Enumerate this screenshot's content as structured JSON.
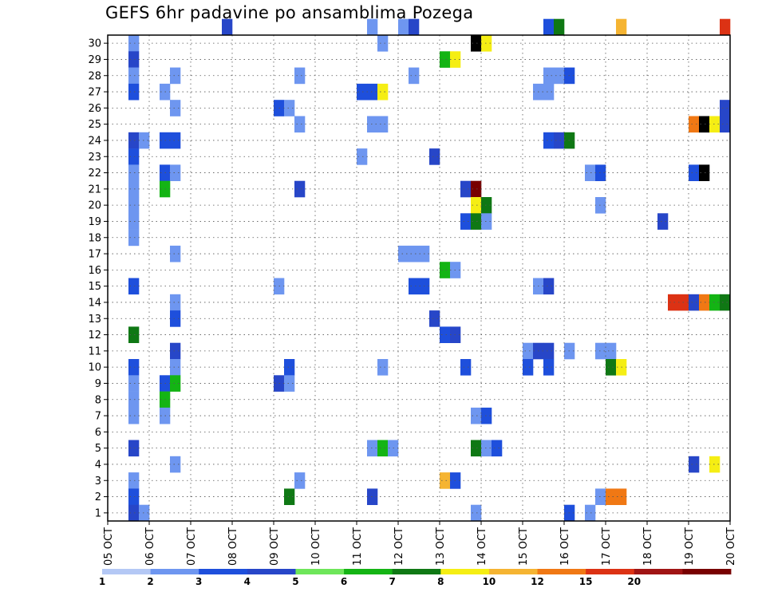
{
  "chart_data": {
    "type": "heatmap",
    "title": "GEFS 6hr padavine po ansamblima Pozega",
    "xlabel": "",
    "ylabel": "",
    "x_tick_labels": [
      "05 OCT",
      "06 OCT",
      "07 OCT",
      "08 OCT",
      "09 OCT",
      "10 OCT",
      "11 OCT",
      "12 OCT",
      "13 OCT",
      "14 OCT",
      "15 OCT",
      "16 OCT",
      "17 OCT",
      "18 OCT",
      "19 OCT",
      "20 OCT"
    ],
    "y_tick_labels": [
      "1",
      "2",
      "3",
      "4",
      "5",
      "6",
      "7",
      "8",
      "9",
      "10",
      "11",
      "12",
      "13",
      "14",
      "15",
      "16",
      "17",
      "18",
      "19",
      "20",
      "21",
      "22",
      "23",
      "24",
      "25",
      "26",
      "27",
      "28",
      "29",
      "30"
    ],
    "xlim": [
      0,
      60
    ],
    "ylim": [
      0,
      30
    ],
    "x_unit": "6-hour steps from 05 OCT",
    "grid": true,
    "legend": {
      "placement": "bottom",
      "labels": [
        "1",
        "2",
        "3",
        "4",
        "5",
        "6",
        "7",
        "8",
        "10",
        "12",
        "15",
        "20"
      ],
      "colors": [
        "#b4c8f5",
        "#6e96f0",
        "#1e4fdc",
        "#2746c8",
        "#6ee65a",
        "#14b414",
        "#0f7814",
        "#f5ee14",
        "#f5b432",
        "#f07814",
        "#dc3214",
        "#a01414",
        "#780000"
      ]
    },
    "cells": [
      [
        11,
        30,
        3
      ],
      [
        25,
        30,
        1
      ],
      [
        28,
        30,
        1
      ],
      [
        29,
        30,
        3
      ],
      [
        42,
        30,
        2
      ],
      [
        43,
        30,
        6
      ],
      [
        49,
        30,
        8
      ],
      [
        59,
        30,
        10
      ],
      [
        2,
        29,
        1
      ],
      [
        26,
        29,
        1
      ],
      [
        35,
        29,
        13
      ],
      [
        36,
        29,
        7
      ],
      [
        2,
        28,
        3
      ],
      [
        32,
        28,
        5
      ],
      [
        33,
        28,
        7
      ],
      [
        2,
        27,
        1
      ],
      [
        6,
        27,
        1
      ],
      [
        18,
        27,
        1
      ],
      [
        29,
        27,
        1
      ],
      [
        42,
        27,
        1
      ],
      [
        43,
        27,
        1
      ],
      [
        44,
        27,
        2
      ],
      [
        2,
        26,
        2
      ],
      [
        5,
        26,
        1
      ],
      [
        24,
        26,
        2
      ],
      [
        25,
        26,
        2
      ],
      [
        26,
        26,
        7
      ],
      [
        41,
        26,
        1
      ],
      [
        42,
        26,
        1
      ],
      [
        6,
        25,
        1
      ],
      [
        16,
        25,
        2
      ],
      [
        17,
        25,
        1
      ],
      [
        59,
        25,
        3
      ],
      [
        18,
        24,
        1
      ],
      [
        25,
        24,
        1
      ],
      [
        26,
        24,
        1
      ],
      [
        56,
        24,
        9
      ],
      [
        57,
        24,
        14
      ],
      [
        58,
        24,
        7
      ],
      [
        59,
        24,
        3
      ],
      [
        2,
        23,
        3
      ],
      [
        3,
        23,
        1
      ],
      [
        5,
        23,
        2
      ],
      [
        6,
        23,
        2
      ],
      [
        42,
        23,
        2
      ],
      [
        43,
        23,
        3
      ],
      [
        44,
        23,
        6
      ],
      [
        2,
        22,
        2
      ],
      [
        24,
        22,
        1
      ],
      [
        31,
        22,
        3
      ],
      [
        2,
        21,
        1
      ],
      [
        5,
        21,
        2
      ],
      [
        6,
        21,
        1
      ],
      [
        46,
        21,
        1
      ],
      [
        47,
        21,
        2
      ],
      [
        56,
        21,
        2
      ],
      [
        57,
        21,
        13
      ],
      [
        2,
        20,
        1
      ],
      [
        5,
        20,
        5
      ],
      [
        18,
        20,
        3
      ],
      [
        34,
        20,
        3
      ],
      [
        35,
        20,
        12
      ],
      [
        2,
        19,
        1
      ],
      [
        35,
        19,
        7
      ],
      [
        36,
        19,
        6
      ],
      [
        47,
        19,
        1
      ],
      [
        2,
        18,
        1
      ],
      [
        34,
        18,
        2
      ],
      [
        35,
        18,
        6
      ],
      [
        36,
        18,
        1
      ],
      [
        53,
        18,
        3
      ],
      [
        2,
        17,
        1
      ],
      [
        6,
        16,
        1
      ],
      [
        28,
        16,
        1
      ],
      [
        29,
        16,
        1
      ],
      [
        30,
        16,
        1
      ],
      [
        32,
        15,
        5
      ],
      [
        33,
        15,
        1
      ],
      [
        2,
        14,
        2
      ],
      [
        16,
        14,
        1
      ],
      [
        29,
        14,
        2
      ],
      [
        30,
        14,
        2
      ],
      [
        41,
        14,
        1
      ],
      [
        42,
        14,
        3
      ],
      [
        54,
        13,
        10
      ],
      [
        55,
        13,
        10
      ],
      [
        56,
        13,
        3
      ],
      [
        57,
        13,
        9
      ],
      [
        58,
        13,
        5
      ],
      [
        59,
        13,
        6
      ],
      [
        6,
        13,
        1
      ],
      [
        6,
        12,
        2
      ],
      [
        31,
        12,
        3
      ],
      [
        2,
        11,
        6
      ],
      [
        32,
        11,
        2
      ],
      [
        33,
        11,
        3
      ],
      [
        6,
        10,
        3
      ],
      [
        40,
        10,
        1
      ],
      [
        41,
        10,
        3
      ],
      [
        42,
        10,
        3
      ],
      [
        44,
        10,
        1
      ],
      [
        47,
        10,
        1
      ],
      [
        48,
        10,
        1
      ],
      [
        2,
        9,
        2
      ],
      [
        6,
        9,
        1
      ],
      [
        17,
        9,
        2
      ],
      [
        26,
        9,
        1
      ],
      [
        34,
        9,
        2
      ],
      [
        40,
        9,
        2
      ],
      [
        42,
        9,
        2
      ],
      [
        48,
        9,
        6
      ],
      [
        49,
        9,
        7
      ],
      [
        2,
        8,
        1
      ],
      [
        5,
        8,
        2
      ],
      [
        6,
        8,
        5
      ],
      [
        16,
        8,
        3
      ],
      [
        17,
        8,
        1
      ],
      [
        2,
        7,
        1
      ],
      [
        5,
        7,
        5
      ],
      [
        2,
        6,
        1
      ],
      [
        5,
        6,
        1
      ],
      [
        35,
        6,
        1
      ],
      [
        36,
        6,
        2
      ],
      [
        2,
        4,
        3
      ],
      [
        25,
        4,
        1
      ],
      [
        26,
        4,
        5
      ],
      [
        27,
        4,
        1
      ],
      [
        35,
        4,
        6
      ],
      [
        36,
        4,
        1
      ],
      [
        37,
        4,
        2
      ],
      [
        6,
        3,
        1
      ],
      [
        56,
        3,
        3
      ],
      [
        58,
        3,
        7
      ],
      [
        2,
        2,
        1
      ],
      [
        18,
        2,
        1
      ],
      [
        32,
        2,
        8
      ],
      [
        33,
        2,
        2
      ],
      [
        2,
        1,
        2
      ],
      [
        17,
        1,
        6
      ],
      [
        25,
        1,
        3
      ],
      [
        47,
        1,
        1
      ],
      [
        48,
        1,
        9
      ],
      [
        49,
        1,
        9
      ],
      [
        2,
        0,
        3
      ],
      [
        3,
        0,
        1
      ],
      [
        35,
        0,
        1
      ],
      [
        44,
        0,
        2
      ],
      [
        46,
        0,
        1
      ]
    ]
  }
}
